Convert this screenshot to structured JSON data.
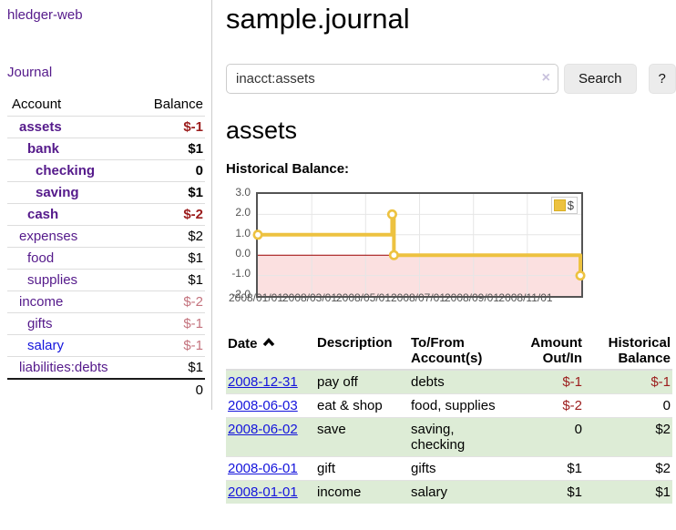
{
  "colors": {
    "link_purple": "#551a8b",
    "link_blue": "#1414dc",
    "negative_strong": "#9b1c1c",
    "negative_muted": "#c4737e",
    "register_row_green": "#ddecd6",
    "chart_line_gold": "#edc240",
    "chart_negative_region_fill": "#fbe0e0",
    "chart_zero_line": "#990000"
  },
  "sidebar": {
    "brand": "hledger-web",
    "nav": {
      "journal": "Journal"
    },
    "accounts": {
      "header_account": "Account",
      "header_balance": "Balance",
      "rows": [
        {
          "name": "assets",
          "balance": "$-1"
        },
        {
          "name": "bank",
          "balance": "$1"
        },
        {
          "name": "checking",
          "balance": "0"
        },
        {
          "name": "saving",
          "balance": "$1"
        },
        {
          "name": "cash",
          "balance": "$-2"
        },
        {
          "name": "expenses",
          "balance": "$2"
        },
        {
          "name": "food",
          "balance": "$1"
        },
        {
          "name": "supplies",
          "balance": "$1"
        },
        {
          "name": "income",
          "balance": "$-2"
        },
        {
          "name": "gifts",
          "balance": "$-1"
        },
        {
          "name": "salary",
          "balance": "$-1"
        },
        {
          "name": "liabilities:debts",
          "balance": "$1"
        }
      ],
      "total": "0"
    }
  },
  "main": {
    "title": "sample.journal",
    "search": {
      "query": "inacct:assets",
      "clear_icon": "×",
      "search_button": "Search",
      "help_button": "?"
    },
    "account_heading": "assets",
    "section_label": "Historical Balance:"
  },
  "chart_data": {
    "type": "line",
    "title": "Historical Balance:",
    "step": true,
    "series": [
      {
        "name": "$",
        "color": "#edc240",
        "points": [
          {
            "date": "2008-01-01",
            "value": 1
          },
          {
            "date": "2008-06-01",
            "value": 2
          },
          {
            "date": "2008-06-03",
            "value": 0
          },
          {
            "date": "2008-12-31",
            "value": -1
          }
        ]
      }
    ],
    "ylim": [
      -2,
      3
    ],
    "xlim": [
      "2008-01-01",
      "2009-01-01"
    ],
    "yticks": [
      "3.0",
      "2.0",
      "1.0",
      "0.0",
      "-1.0",
      "-2.0"
    ],
    "xticks": [
      "2008/01/01",
      "2008/03/01",
      "2008/05/01",
      "2008/07/01",
      "2008/09/01",
      "2008/11/01"
    ],
    "grid": true,
    "negative_region_shaded": true,
    "legend": {
      "label": "$",
      "position": "top-right"
    }
  },
  "register": {
    "headers": {
      "date": "Date",
      "description": "Description",
      "account": "To/From Account(s)",
      "amount": "Amount Out/In",
      "balance": "Historical Balance"
    },
    "rows": [
      {
        "date": "2008-12-31",
        "description": "pay off",
        "accounts": "debts",
        "amount": "$-1",
        "balance": "$-1"
      },
      {
        "date": "2008-06-03",
        "description": "eat & shop",
        "accounts": "food, supplies",
        "amount": "$-2",
        "balance": "0"
      },
      {
        "date": "2008-06-02",
        "description": "save",
        "accounts": "saving, checking",
        "amount": "0",
        "balance": "$2"
      },
      {
        "date": "2008-06-01",
        "description": "gift",
        "accounts": "gifts",
        "amount": "$1",
        "balance": "$2"
      },
      {
        "date": "2008-01-01",
        "description": "income",
        "accounts": "salary",
        "amount": "$1",
        "balance": "$1"
      }
    ]
  }
}
